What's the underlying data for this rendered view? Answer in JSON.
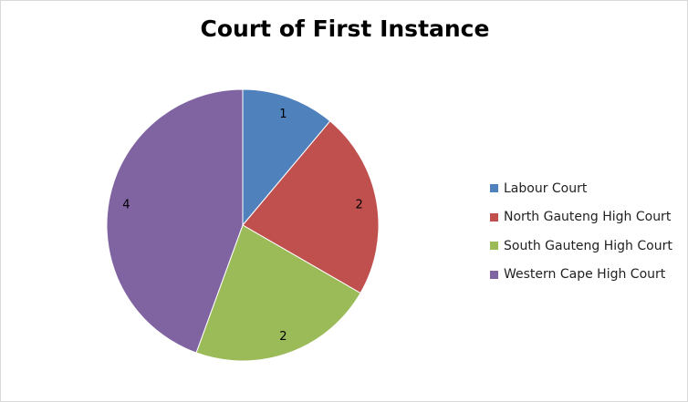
{
  "chart_data": {
    "type": "pie",
    "title": "Court of First Instance",
    "categories": [
      "Labour Court",
      "North Gauteng High Court",
      "South Gauteng High Court",
      "Western Cape High Court"
    ],
    "values": [
      1,
      2,
      2,
      4
    ],
    "colors": [
      "#4f81bd",
      "#c0504d",
      "#9bbb59",
      "#8064a2"
    ],
    "legend_position": "right"
  }
}
